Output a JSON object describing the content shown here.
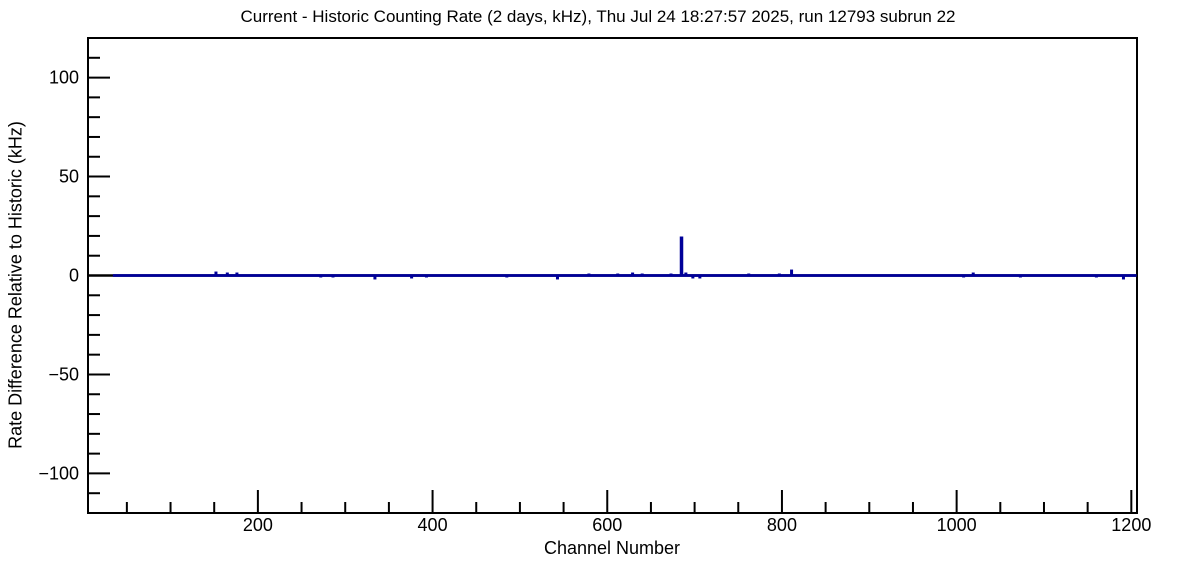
{
  "colors": {
    "background": "#ffffff",
    "axis": "#000000",
    "text": "#000000",
    "histogram_line": "#000099",
    "zero_line": "#000000"
  },
  "chart_data": {
    "type": "bar",
    "title": "Current - Historic Counting Rate (2 days, kHz), Thu Jul 24 18:27:57 2025, run 12793 subrun 22",
    "xlabel": "Channel Number",
    "ylabel": "Rate Difference Relative to Historic (kHz)",
    "xlim": [
      5.5,
      1206.5
    ],
    "ylim": [
      -120,
      120
    ],
    "x_major_ticks": [
      200,
      400,
      600,
      800,
      1000,
      1200
    ],
    "x_minor_step": 50,
    "y_major_ticks": [
      -100,
      -50,
      0,
      50,
      100
    ],
    "y_minor_step": 10,
    "grid": "off",
    "legend": "none",
    "baseline_value": 0,
    "data_channel_start": 34,
    "data_channel_end": 1206,
    "deviations": [
      {
        "channel": 152,
        "value": 2.0
      },
      {
        "channel": 165,
        "value": 1.5
      },
      {
        "channel": 176,
        "value": 1.5
      },
      {
        "channel": 272,
        "value": -1.0
      },
      {
        "channel": 286,
        "value": -1.0
      },
      {
        "channel": 334,
        "value": -2.0
      },
      {
        "channel": 376,
        "value": -1.5
      },
      {
        "channel": 393,
        "value": -1.0
      },
      {
        "channel": 485,
        "value": -1.0
      },
      {
        "channel": 543,
        "value": -2.0
      },
      {
        "channel": 579,
        "value": 1.0
      },
      {
        "channel": 612,
        "value": 1.0
      },
      {
        "channel": 629,
        "value": 1.5
      },
      {
        "channel": 640,
        "value": 1.0
      },
      {
        "channel": 673,
        "value": 1.0
      },
      {
        "channel": 685,
        "value": 19.7
      },
      {
        "channel": 690,
        "value": 1.5
      },
      {
        "channel": 698,
        "value": -1.5
      },
      {
        "channel": 706,
        "value": -1.5
      },
      {
        "channel": 762,
        "value": 1.0
      },
      {
        "channel": 797,
        "value": 1.0
      },
      {
        "channel": 811,
        "value": 3.0
      },
      {
        "channel": 1008,
        "value": -1.0
      },
      {
        "channel": 1019,
        "value": 1.5
      },
      {
        "channel": 1073,
        "value": -1.0
      },
      {
        "channel": 1160,
        "value": -1.0
      },
      {
        "channel": 1191,
        "value": -2.0
      }
    ]
  }
}
